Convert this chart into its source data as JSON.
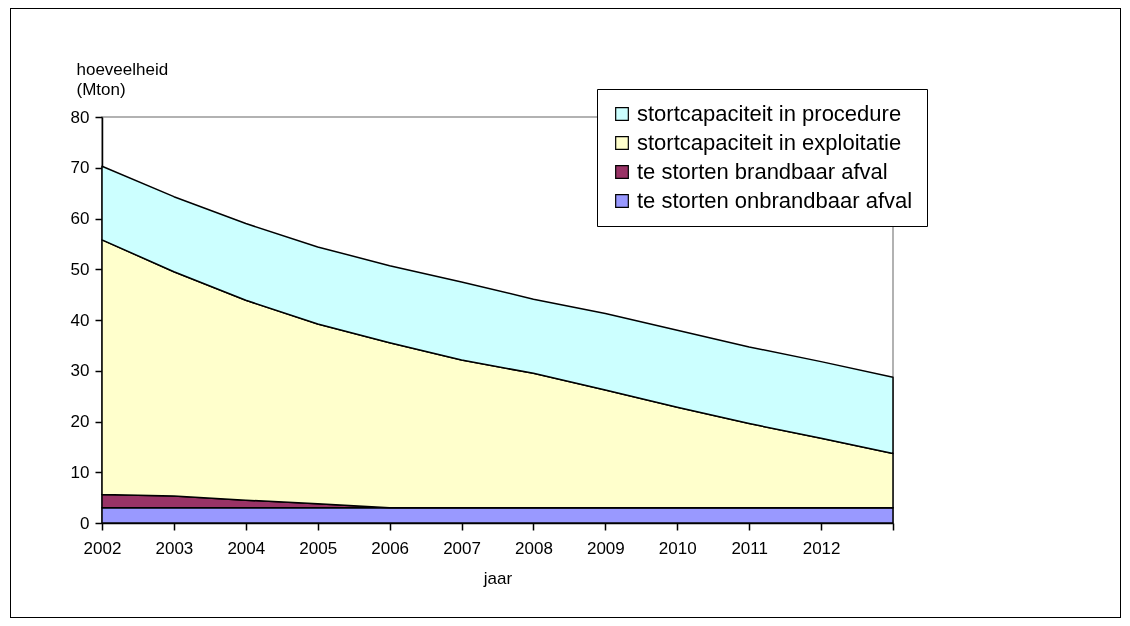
{
  "chart_data": {
    "type": "area",
    "stacked": true,
    "xlabel": "jaar",
    "ylabel": "hoeveelheid (Mton)",
    "categories": [
      "2002",
      "2003",
      "2004",
      "2005",
      "2006",
      "2007",
      "2008",
      "2009",
      "2010",
      "2011",
      "2012",
      null
    ],
    "ylim": [
      0,
      80
    ],
    "yticks": [
      0,
      10,
      20,
      30,
      40,
      50,
      60,
      70,
      80
    ],
    "grid": false,
    "legend": "top right",
    "series": [
      {
        "name": "te storten onbrandbaar afval",
        "color": "#9999ff",
        "values": [
          3,
          3,
          3,
          3,
          3,
          3,
          3,
          3,
          3,
          3,
          3,
          3
        ]
      },
      {
        "name": "te storten brandbaar afval",
        "color": "#993366",
        "values": [
          2.6,
          2.3,
          1.5,
          0.8,
          0,
          0,
          0,
          0,
          0,
          0,
          0,
          0
        ]
      },
      {
        "name": "stortcapaciteit in exploitatie",
        "color": "#ffffcc",
        "values": [
          50.2,
          44.2,
          39.4,
          35.4,
          32.5,
          29.1,
          26.5,
          23.2,
          19.8,
          16.6,
          13.7,
          10.7
        ]
      },
      {
        "name": "stortcapaciteit in procedure",
        "color": "#ccffff",
        "values": [
          14.5,
          14.8,
          15.1,
          15.2,
          15.2,
          15.4,
          14.6,
          15.1,
          15.2,
          15.1,
          15.1,
          15.0
        ]
      }
    ]
  }
}
